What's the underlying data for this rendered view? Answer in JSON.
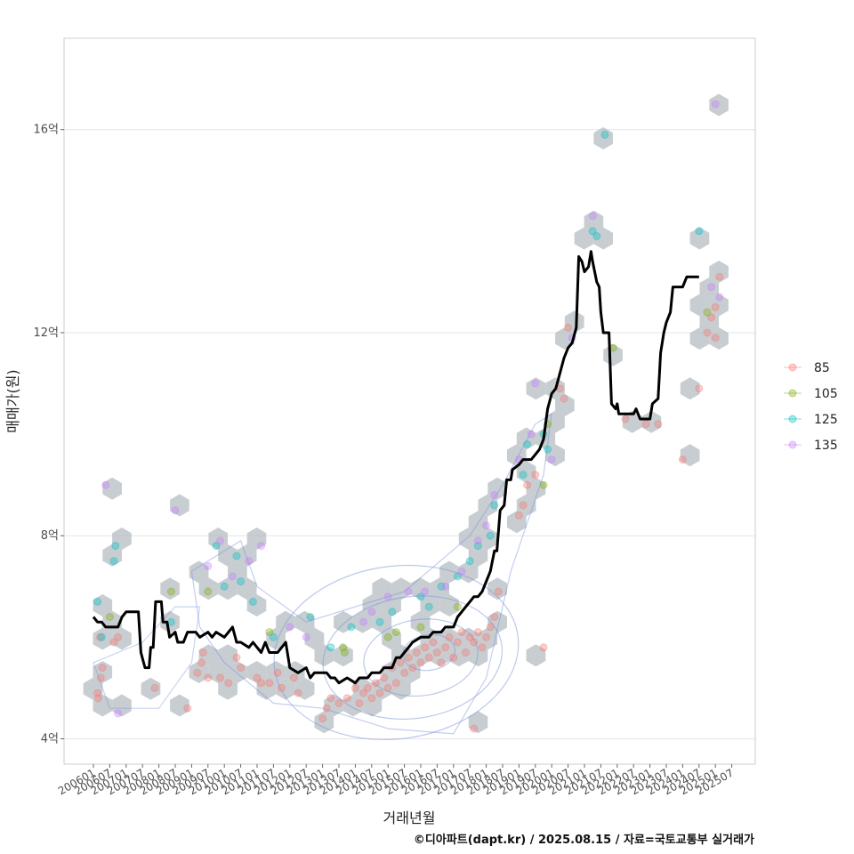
{
  "chart_data": {
    "type": "scatter",
    "xlabel": "거래년월",
    "ylabel": "매매가(원)",
    "caption": "©디아파트(dapt.kr) / 2025.08.15 / 자료=국토교통부 실거래가",
    "x_tick_labels": [
      "200601",
      "200607",
      "200701",
      "200707",
      "200801",
      "200807",
      "200901",
      "200907",
      "201001",
      "201007",
      "201101",
      "201107",
      "201201",
      "201207",
      "201301",
      "201307",
      "201401",
      "201407",
      "201501",
      "201507",
      "201601",
      "201607",
      "201701",
      "201707",
      "201801",
      "201807",
      "201901",
      "201907",
      "202001",
      "202007",
      "202101",
      "202107",
      "202201",
      "202207",
      "202301",
      "202307",
      "202401",
      "202407",
      "202501",
      "202507"
    ],
    "y_ticks": [
      4,
      8,
      12,
      16
    ],
    "y_tick_labels": [
      "4억",
      "8억",
      "12억",
      "16억"
    ],
    "xlim": [
      0,
      78
    ],
    "ylim": [
      3.5,
      17.8
    ],
    "legend_position": "right",
    "colors": {
      "85": "#f8766d",
      "105": "#7cae00",
      "125": "#00bfc4",
      "135": "#c77cff",
      "line": "#000000",
      "hex": "#b4bcc2",
      "contour": "#7b93dc",
      "grid": "#e5e5e5",
      "panel_border": "#cccccc"
    },
    "series": [
      {
        "name": "85",
        "points": [
          [
            0.5,
            4.9
          ],
          [
            0.6,
            4.8
          ],
          [
            0.9,
            5.2
          ],
          [
            1.1,
            5.4
          ],
          [
            0.8,
            6.0
          ],
          [
            2.5,
            5.9
          ],
          [
            3.0,
            6.0
          ],
          [
            7.5,
            5.0
          ],
          [
            11.5,
            4.6
          ],
          [
            12.7,
            5.3
          ],
          [
            13.2,
            5.5
          ],
          [
            13.4,
            5.7
          ],
          [
            14.0,
            5.2
          ],
          [
            15.5,
            5.2
          ],
          [
            16.5,
            5.1
          ],
          [
            17.5,
            5.6
          ],
          [
            18.0,
            5.4
          ],
          [
            20.0,
            5.2
          ],
          [
            20.5,
            5.1
          ],
          [
            21.5,
            5.1
          ],
          [
            22.5,
            5.3
          ],
          [
            23.0,
            5.0
          ],
          [
            24.5,
            5.2
          ],
          [
            25.0,
            4.9
          ],
          [
            28.0,
            4.4
          ],
          [
            28.5,
            4.6
          ],
          [
            29.0,
            4.8
          ],
          [
            30.0,
            4.7
          ],
          [
            31.0,
            4.8
          ],
          [
            32.0,
            5.0
          ],
          [
            32.5,
            4.7
          ],
          [
            33.0,
            4.9
          ],
          [
            33.5,
            5.0
          ],
          [
            34.0,
            4.8
          ],
          [
            34.5,
            5.1
          ],
          [
            35.0,
            4.9
          ],
          [
            35.5,
            5.2
          ],
          [
            36.0,
            5.0
          ],
          [
            36.5,
            5.4
          ],
          [
            37.0,
            5.1
          ],
          [
            37.5,
            5.5
          ],
          [
            38.0,
            5.3
          ],
          [
            38.5,
            5.6
          ],
          [
            39.0,
            5.4
          ],
          [
            39.5,
            5.7
          ],
          [
            40.0,
            5.5
          ],
          [
            40.5,
            5.8
          ],
          [
            41.0,
            5.6
          ],
          [
            41.5,
            5.9
          ],
          [
            42.0,
            5.7
          ],
          [
            42.5,
            5.5
          ],
          [
            43.0,
            5.8
          ],
          [
            43.5,
            6.0
          ],
          [
            44.0,
            5.6
          ],
          [
            44.5,
            5.9
          ],
          [
            45.0,
            6.1
          ],
          [
            45.5,
            5.7
          ],
          [
            46.0,
            6.0
          ],
          [
            46.5,
            5.9
          ],
          [
            47.0,
            6.1
          ],
          [
            47.5,
            5.8
          ],
          [
            48.0,
            6.0
          ],
          [
            48.5,
            6.2
          ],
          [
            49.0,
            6.4
          ],
          [
            49.5,
            6.9
          ],
          [
            46.5,
            4.2
          ],
          [
            52.0,
            8.4
          ],
          [
            52.5,
            8.6
          ],
          [
            53.0,
            9.0
          ],
          [
            54.0,
            9.2
          ],
          [
            57.0,
            10.9
          ],
          [
            57.5,
            10.7
          ],
          [
            55.0,
            5.8
          ],
          [
            58.0,
            12.1
          ],
          [
            65.0,
            10.3
          ],
          [
            67.5,
            10.2
          ],
          [
            69.0,
            10.2
          ],
          [
            72.0,
            9.5
          ],
          [
            74.0,
            10.9
          ],
          [
            75.0,
            12.0
          ],
          [
            75.5,
            12.3
          ],
          [
            76.0,
            12.5
          ],
          [
            76.5,
            13.1
          ],
          [
            76.0,
            11.9
          ]
        ]
      },
      {
        "name": "105",
        "points": [
          [
            2.0,
            6.4
          ],
          [
            9.5,
            6.9
          ],
          [
            14.0,
            6.9
          ],
          [
            21.5,
            6.1
          ],
          [
            30.5,
            5.8
          ],
          [
            30.7,
            5.7
          ],
          [
            36.0,
            6.0
          ],
          [
            37.0,
            6.1
          ],
          [
            40.0,
            6.2
          ],
          [
            44.5,
            6.6
          ],
          [
            55.0,
            9.0
          ],
          [
            55.5,
            10.2
          ],
          [
            63.5,
            11.7
          ],
          [
            75.0,
            12.4
          ]
        ]
      },
      {
        "name": "125",
        "points": [
          [
            0.5,
            6.7
          ],
          [
            1.0,
            6.0
          ],
          [
            2.5,
            7.5
          ],
          [
            2.7,
            7.8
          ],
          [
            9.5,
            6.3
          ],
          [
            15.0,
            7.8
          ],
          [
            16.0,
            7.0
          ],
          [
            17.5,
            7.6
          ],
          [
            18.0,
            7.1
          ],
          [
            19.5,
            6.7
          ],
          [
            22.0,
            6.0
          ],
          [
            26.5,
            6.4
          ],
          [
            29.0,
            5.8
          ],
          [
            31.5,
            6.2
          ],
          [
            35.0,
            6.3
          ],
          [
            36.5,
            6.5
          ],
          [
            40.0,
            6.8
          ],
          [
            41.0,
            6.6
          ],
          [
            42.5,
            7.0
          ],
          [
            44.5,
            7.2
          ],
          [
            46.0,
            7.5
          ],
          [
            47.0,
            7.8
          ],
          [
            48.5,
            8.0
          ],
          [
            49.0,
            8.6
          ],
          [
            52.5,
            9.2
          ],
          [
            53.0,
            9.8
          ],
          [
            55.0,
            10.0
          ],
          [
            55.5,
            9.7
          ],
          [
            61.0,
            14.0
          ],
          [
            61.5,
            13.9
          ],
          [
            62.5,
            15.9
          ],
          [
            74.0,
            14.0
          ]
        ]
      },
      {
        "name": "135",
        "points": [
          [
            1.5,
            9.0
          ],
          [
            3.0,
            4.5
          ],
          [
            10.0,
            8.5
          ],
          [
            14.0,
            7.4
          ],
          [
            15.5,
            7.9
          ],
          [
            17.0,
            7.2
          ],
          [
            19.0,
            7.5
          ],
          [
            20.5,
            7.8
          ],
          [
            24.0,
            6.2
          ],
          [
            26.0,
            6.0
          ],
          [
            33.0,
            6.3
          ],
          [
            34.0,
            6.5
          ],
          [
            36.0,
            6.8
          ],
          [
            38.5,
            6.9
          ],
          [
            40.5,
            6.9
          ],
          [
            43.0,
            7.0
          ],
          [
            45.0,
            7.3
          ],
          [
            47.0,
            7.9
          ],
          [
            48.0,
            8.2
          ],
          [
            49.0,
            8.8
          ],
          [
            52.0,
            9.5
          ],
          [
            53.5,
            10.0
          ],
          [
            54.0,
            11.0
          ],
          [
            56.0,
            9.5
          ],
          [
            58.5,
            11.9
          ],
          [
            61.0,
            14.3
          ],
          [
            75.5,
            12.9
          ],
          [
            76.0,
            16.5
          ],
          [
            76.5,
            12.7
          ]
        ]
      },
      {
        "name": "moving-average",
        "points": [
          [
            0.0,
            6.4
          ],
          [
            0.5,
            6.3
          ],
          [
            1.0,
            6.3
          ],
          [
            1.5,
            6.2
          ],
          [
            2.0,
            6.2
          ],
          [
            3.0,
            6.2
          ],
          [
            3.5,
            6.4
          ],
          [
            4.0,
            6.5
          ],
          [
            5.5,
            6.5
          ],
          [
            5.8,
            5.7
          ],
          [
            6.3,
            5.4
          ],
          [
            6.8,
            5.4
          ],
          [
            7.0,
            5.8
          ],
          [
            7.3,
            5.8
          ],
          [
            7.6,
            6.7
          ],
          [
            8.3,
            6.7
          ],
          [
            8.5,
            6.3
          ],
          [
            9.0,
            6.3
          ],
          [
            9.3,
            6.0
          ],
          [
            10.0,
            6.1
          ],
          [
            10.3,
            5.9
          ],
          [
            11.0,
            5.9
          ],
          [
            11.5,
            6.1
          ],
          [
            12.5,
            6.1
          ],
          [
            13.0,
            6.0
          ],
          [
            14.0,
            6.1
          ],
          [
            14.5,
            6.0
          ],
          [
            15.0,
            6.1
          ],
          [
            16.0,
            6.0
          ],
          [
            17.0,
            6.2
          ],
          [
            17.5,
            5.9
          ],
          [
            18.0,
            5.9
          ],
          [
            19.0,
            5.8
          ],
          [
            19.5,
            5.9
          ],
          [
            20.0,
            5.8
          ],
          [
            20.5,
            5.7
          ],
          [
            21.0,
            5.9
          ],
          [
            21.5,
            5.7
          ],
          [
            22.5,
            5.7
          ],
          [
            23.0,
            5.8
          ],
          [
            23.5,
            5.9
          ],
          [
            24.0,
            5.4
          ],
          [
            25.0,
            5.3
          ],
          [
            26.0,
            5.4
          ],
          [
            26.5,
            5.2
          ],
          [
            27.0,
            5.3
          ],
          [
            28.5,
            5.3
          ],
          [
            29.0,
            5.2
          ],
          [
            29.5,
            5.2
          ],
          [
            30.0,
            5.1
          ],
          [
            31.0,
            5.2
          ],
          [
            32.0,
            5.1
          ],
          [
            32.5,
            5.2
          ],
          [
            33.5,
            5.2
          ],
          [
            34.0,
            5.3
          ],
          [
            35.0,
            5.3
          ],
          [
            35.5,
            5.4
          ],
          [
            36.5,
            5.4
          ],
          [
            37.0,
            5.6
          ],
          [
            37.5,
            5.6
          ],
          [
            38.0,
            5.7
          ],
          [
            38.5,
            5.8
          ],
          [
            39.0,
            5.9
          ],
          [
            40.0,
            6.0
          ],
          [
            41.0,
            6.0
          ],
          [
            41.5,
            6.1
          ],
          [
            42.5,
            6.1
          ],
          [
            43.0,
            6.2
          ],
          [
            44.0,
            6.2
          ],
          [
            44.5,
            6.4
          ],
          [
            45.0,
            6.5
          ],
          [
            45.5,
            6.6
          ],
          [
            46.0,
            6.7
          ],
          [
            46.5,
            6.8
          ],
          [
            47.0,
            6.8
          ],
          [
            47.5,
            6.9
          ],
          [
            48.0,
            7.1
          ],
          [
            48.5,
            7.3
          ],
          [
            49.0,
            7.7
          ],
          [
            49.3,
            7.7
          ],
          [
            49.7,
            8.5
          ],
          [
            50.2,
            8.6
          ],
          [
            50.5,
            9.1
          ],
          [
            51.0,
            9.1
          ],
          [
            51.2,
            9.3
          ],
          [
            52.0,
            9.4
          ],
          [
            52.5,
            9.5
          ],
          [
            53.5,
            9.5
          ],
          [
            54.0,
            9.6
          ],
          [
            54.5,
            9.7
          ],
          [
            55.0,
            9.9
          ],
          [
            55.5,
            10.5
          ],
          [
            56.0,
            10.8
          ],
          [
            56.5,
            10.9
          ],
          [
            57.0,
            11.2
          ],
          [
            57.5,
            11.5
          ],
          [
            58.0,
            11.7
          ],
          [
            58.5,
            11.8
          ],
          [
            59.0,
            12.1
          ],
          [
            59.3,
            13.5
          ],
          [
            59.7,
            13.4
          ],
          [
            60.0,
            13.2
          ],
          [
            60.5,
            13.3
          ],
          [
            60.8,
            13.6
          ],
          [
            61.0,
            13.4
          ],
          [
            61.5,
            13.0
          ],
          [
            61.8,
            12.9
          ],
          [
            62.0,
            12.4
          ],
          [
            62.3,
            12.0
          ],
          [
            63.0,
            12.0
          ],
          [
            63.3,
            10.6
          ],
          [
            63.8,
            10.5
          ],
          [
            64.0,
            10.6
          ],
          [
            64.2,
            10.4
          ],
          [
            65.0,
            10.4
          ],
          [
            66.0,
            10.4
          ],
          [
            66.3,
            10.5
          ],
          [
            66.8,
            10.3
          ],
          [
            68.0,
            10.3
          ],
          [
            68.3,
            10.6
          ],
          [
            69.0,
            10.7
          ],
          [
            69.3,
            11.6
          ],
          [
            69.7,
            12.0
          ],
          [
            70.0,
            12.2
          ],
          [
            70.5,
            12.4
          ],
          [
            70.8,
            12.9
          ],
          [
            71.5,
            12.9
          ],
          [
            72.0,
            12.9
          ],
          [
            72.5,
            13.1
          ],
          [
            73.0,
            13.1
          ],
          [
            73.5,
            13.1
          ],
          [
            74.0,
            13.1
          ]
        ]
      }
    ]
  }
}
